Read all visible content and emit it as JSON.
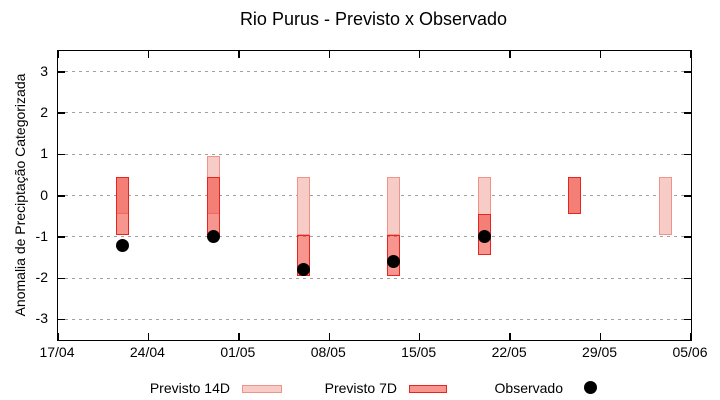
{
  "chart_data": {
    "type": "bar",
    "title": "Rio Purus - Previsto x Observado",
    "ylabel": "Anomalia de Preciptação Categorizada",
    "xlabel": "",
    "ylim": [
      -3.5,
      3.5
    ],
    "yticks": [
      {
        "v": 3,
        "label": "3"
      },
      {
        "v": 2,
        "label": "2"
      },
      {
        "v": 1,
        "label": "1"
      },
      {
        "v": 0,
        "label": "0"
      },
      {
        "v": -1,
        "label": "-1"
      },
      {
        "v": -2,
        "label": "-2"
      },
      {
        "v": -3,
        "label": "-3"
      }
    ],
    "xlim_days": [
      0,
      49
    ],
    "xticks": [
      {
        "day": 0,
        "label": "17/04"
      },
      {
        "day": 7,
        "label": "24/04"
      },
      {
        "day": 14,
        "label": "01/05"
      },
      {
        "day": 21,
        "label": "08/05"
      },
      {
        "day": 28,
        "label": "15/05"
      },
      {
        "day": 35,
        "label": "22/05"
      },
      {
        "day": 42,
        "label": "29/05"
      },
      {
        "day": 49,
        "label": "05/06"
      }
    ],
    "grid": "dashed-horizontal",
    "legend_position": "bottom",
    "points": [
      {
        "date": "22/04",
        "day": 5,
        "previsto_14d": [
          0.45,
          -0.45
        ],
        "previsto_7d": [
          0.45,
          -0.95
        ],
        "observado": -1.2
      },
      {
        "date": "29/04",
        "day": 12,
        "previsto_14d": [
          0.95,
          -0.45
        ],
        "previsto_7d": [
          0.45,
          -0.95
        ],
        "observado": -1.0
      },
      {
        "date": "06/05",
        "day": 19,
        "previsto_14d": [
          0.45,
          -0.95
        ],
        "previsto_7d": [
          -0.95,
          -1.95
        ],
        "observado": -1.8
      },
      {
        "date": "13/05",
        "day": 26,
        "previsto_14d": [
          0.45,
          -0.95
        ],
        "previsto_7d": [
          -0.95,
          -1.95
        ],
        "observado": -1.6
      },
      {
        "date": "20/05",
        "day": 33,
        "previsto_14d": [
          0.45,
          -0.95
        ],
        "previsto_7d": [
          -0.45,
          -1.45
        ],
        "observado": -1.0
      },
      {
        "date": "27/05",
        "day": 40,
        "previsto_14d": [
          0.45,
          -0.45
        ],
        "previsto_7d": [
          0.45,
          -0.45
        ],
        "observado": null
      },
      {
        "date": "03/06",
        "day": 47,
        "previsto_14d": [
          0.45,
          -0.95
        ],
        "previsto_7d": null,
        "observado": null
      }
    ],
    "legend": {
      "items": [
        {
          "label": "Previsto 14D",
          "marker": "box-light"
        },
        {
          "label": "Previsto 7D",
          "marker": "box-dark"
        },
        {
          "label": "Observado",
          "marker": "dot"
        }
      ]
    },
    "colors": {
      "previsto_14d_fill": "#f7cbc6",
      "previsto_14d_border": "#f0938b",
      "previsto_7d_fill": "rgba(242,72,62,0.58)",
      "previsto_7d_border": "#e62420",
      "observado": "#000000",
      "grid": "#a0a0a0",
      "axis": "#000000",
      "background": "#ffffff"
    }
  }
}
